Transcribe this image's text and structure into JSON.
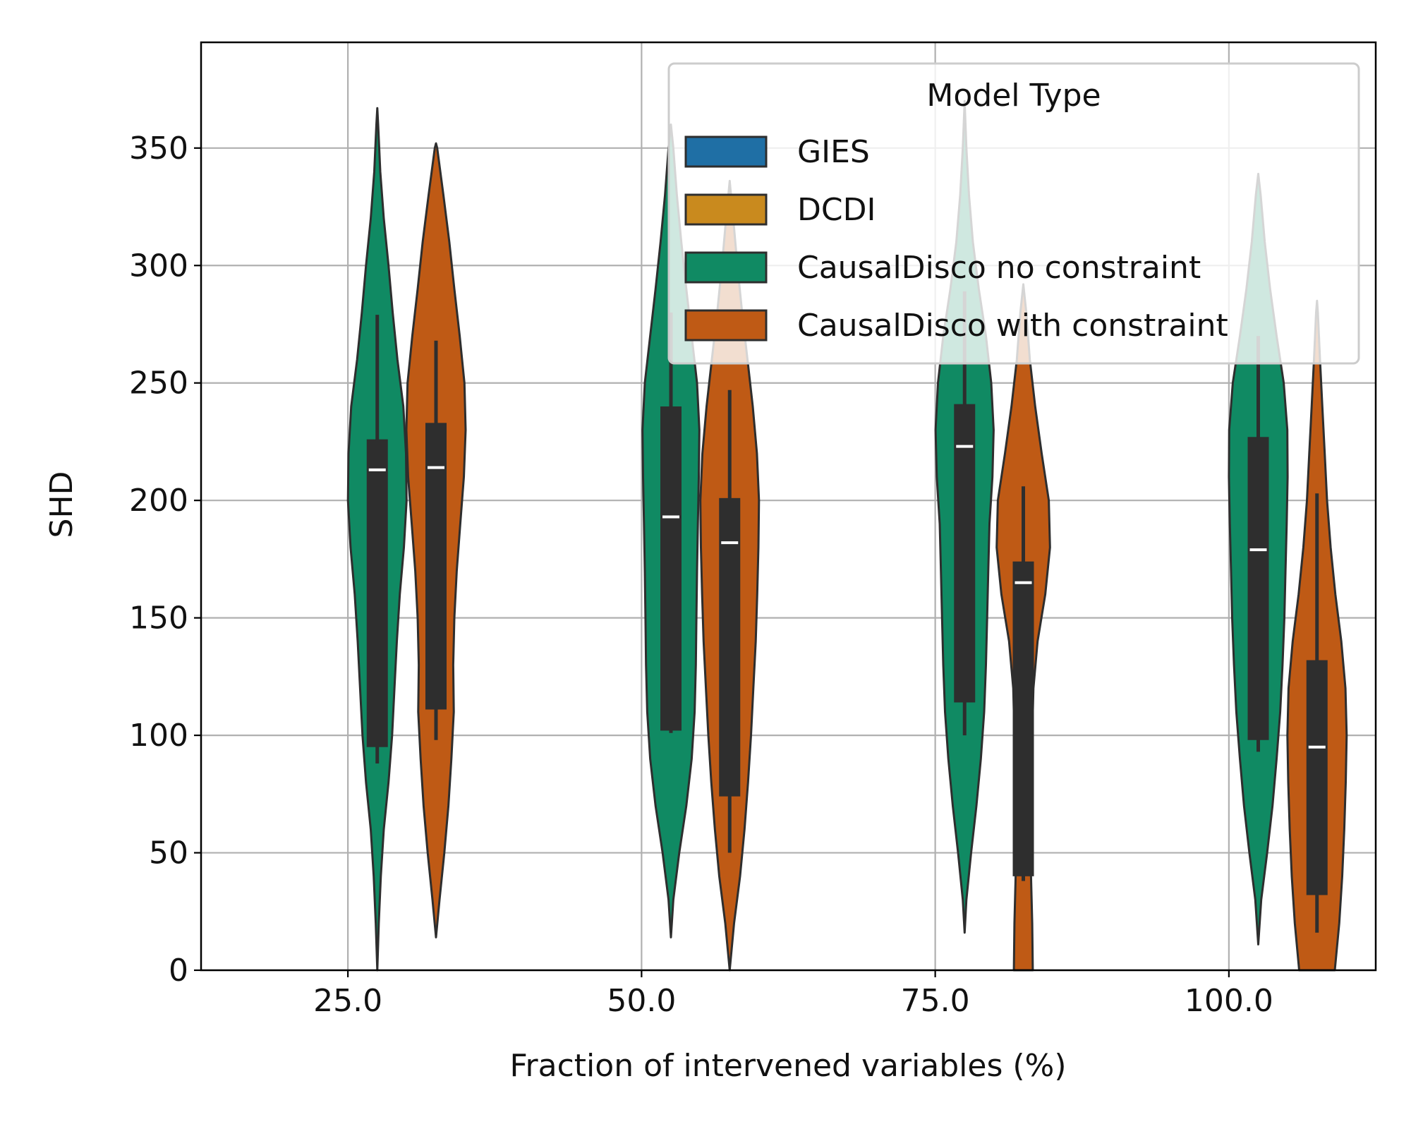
{
  "chart_data": {
    "type": "violin",
    "title": "",
    "xlabel": "Fraction of intervened variables (%)",
    "ylabel": "SHD",
    "ylim": [
      0,
      395
    ],
    "xlim": [
      12.5,
      112.5
    ],
    "categories": [
      25.0,
      50.0,
      75.0,
      100.0
    ],
    "category_labels": [
      "25.0",
      "50.0",
      "75.0",
      "100.0"
    ],
    "yticks": [
      0,
      50,
      100,
      150,
      200,
      250,
      300,
      350
    ],
    "ytick_labels": [
      "0",
      "50",
      "100",
      "150",
      "200",
      "250",
      "300",
      "350"
    ],
    "grid": true,
    "legend": {
      "title": "Model Type",
      "placement": "top-right",
      "entries": [
        {
          "name": "GIES",
          "color": "#1f6fa5"
        },
        {
          "name": "DCDI",
          "color": "#c98a1e"
        },
        {
          "name": "CausalDisco no constraint",
          "color": "#108a63"
        },
        {
          "name": "CausalDisco with constraint",
          "color": "#bf5a15"
        }
      ]
    },
    "series": [
      {
        "name": "CausalDisco no constraint",
        "color": "#108a63",
        "offset": 2.5,
        "violins": [
          {
            "x": 25.0,
            "median": 213,
            "q1": 95,
            "q3": 226,
            "whisker_low": 88,
            "whisker_high": 279,
            "profile": [
              [
                0,
                0.0
              ],
              [
                20,
                0.05
              ],
              [
                40,
                0.12
              ],
              [
                60,
                0.22
              ],
              [
                80,
                0.38
              ],
              [
                100,
                0.5
              ],
              [
                120,
                0.58
              ],
              [
                140,
                0.66
              ],
              [
                160,
                0.76
              ],
              [
                180,
                0.9
              ],
              [
                200,
                0.99
              ],
              [
                220,
                0.97
              ],
              [
                240,
                0.88
              ],
              [
                260,
                0.68
              ],
              [
                280,
                0.52
              ],
              [
                300,
                0.38
              ],
              [
                320,
                0.22
              ],
              [
                340,
                0.1
              ],
              [
                360,
                0.03
              ],
              [
                367,
                0.0
              ]
            ]
          },
          {
            "x": 50.0,
            "median": 193,
            "q1": 102,
            "q3": 240,
            "whisker_low": 101,
            "whisker_high": 280,
            "profile": [
              [
                14,
                0.0
              ],
              [
                30,
                0.08
              ],
              [
                50,
                0.28
              ],
              [
                70,
                0.52
              ],
              [
                90,
                0.7
              ],
              [
                110,
                0.8
              ],
              [
                130,
                0.84
              ],
              [
                150,
                0.86
              ],
              [
                170,
                0.88
              ],
              [
                190,
                0.91
              ],
              [
                210,
                0.94
              ],
              [
                230,
                0.96
              ],
              [
                250,
                0.88
              ],
              [
                270,
                0.7
              ],
              [
                290,
                0.52
              ],
              [
                310,
                0.35
              ],
              [
                330,
                0.2
              ],
              [
                350,
                0.08
              ],
              [
                360,
                0.0
              ]
            ]
          },
          {
            "x": 75.0,
            "median": 223,
            "q1": 114,
            "q3": 241,
            "whisker_low": 100,
            "whisker_high": 289,
            "profile": [
              [
                16,
                0.0
              ],
              [
                30,
                0.06
              ],
              [
                50,
                0.22
              ],
              [
                70,
                0.4
              ],
              [
                90,
                0.55
              ],
              [
                110,
                0.66
              ],
              [
                130,
                0.72
              ],
              [
                150,
                0.76
              ],
              [
                170,
                0.8
              ],
              [
                190,
                0.84
              ],
              [
                210,
                0.94
              ],
              [
                230,
                0.98
              ],
              [
                250,
                0.9
              ],
              [
                270,
                0.72
              ],
              [
                290,
                0.48
              ],
              [
                310,
                0.28
              ],
              [
                330,
                0.15
              ],
              [
                350,
                0.06
              ],
              [
                370,
                0.0
              ]
            ]
          },
          {
            "x": 100.0,
            "median": 179,
            "q1": 98,
            "q3": 227,
            "whisker_low": 93,
            "whisker_high": 270,
            "profile": [
              [
                11,
                0.0
              ],
              [
                30,
                0.1
              ],
              [
                50,
                0.3
              ],
              [
                70,
                0.48
              ],
              [
                90,
                0.62
              ],
              [
                110,
                0.74
              ],
              [
                130,
                0.82
              ],
              [
                150,
                0.88
              ],
              [
                170,
                0.92
              ],
              [
                190,
                0.96
              ],
              [
                210,
                0.99
              ],
              [
                230,
                0.98
              ],
              [
                250,
                0.86
              ],
              [
                270,
                0.62
              ],
              [
                290,
                0.4
              ],
              [
                310,
                0.22
              ],
              [
                330,
                0.08
              ],
              [
                339,
                0.0
              ]
            ]
          }
        ]
      },
      {
        "name": "CausalDisco with constraint",
        "color": "#bf5a15",
        "offset": 7.5,
        "violins": [
          {
            "x": 25.0,
            "median": 214,
            "q1": 111,
            "q3": 233,
            "whisker_low": 98,
            "whisker_high": 268,
            "profile": [
              [
                14,
                0.0
              ],
              [
                30,
                0.12
              ],
              [
                50,
                0.28
              ],
              [
                70,
                0.42
              ],
              [
                90,
                0.52
              ],
              [
                110,
                0.6
              ],
              [
                130,
                0.58
              ],
              [
                150,
                0.62
              ],
              [
                170,
                0.7
              ],
              [
                190,
                0.82
              ],
              [
                210,
                0.94
              ],
              [
                230,
                1.0
              ],
              [
                250,
                0.96
              ],
              [
                270,
                0.8
              ],
              [
                290,
                0.62
              ],
              [
                310,
                0.45
              ],
              [
                330,
                0.25
              ],
              [
                350,
                0.04
              ],
              [
                352,
                0.0
              ]
            ]
          },
          {
            "x": 50.0,
            "median": 182,
            "q1": 74,
            "q3": 201,
            "whisker_low": 50,
            "whisker_high": 247,
            "profile": [
              [
                0,
                0.0
              ],
              [
                20,
                0.15
              ],
              [
                40,
                0.35
              ],
              [
                60,
                0.5
              ],
              [
                80,
                0.62
              ],
              [
                100,
                0.72
              ],
              [
                120,
                0.8
              ],
              [
                140,
                0.88
              ],
              [
                160,
                0.93
              ],
              [
                180,
                0.97
              ],
              [
                200,
                0.99
              ],
              [
                220,
                0.92
              ],
              [
                240,
                0.78
              ],
              [
                260,
                0.6
              ],
              [
                280,
                0.42
              ],
              [
                300,
                0.26
              ],
              [
                320,
                0.12
              ],
              [
                336,
                0.0
              ]
            ]
          },
          {
            "x": 75.0,
            "median": 165,
            "q1": 40,
            "q3": 174,
            "whisker_low": 38,
            "whisker_high": 206,
            "profile": [
              [
                0,
                0.32
              ],
              [
                20,
                0.3
              ],
              [
                40,
                0.26
              ],
              [
                60,
                0.26
              ],
              [
                80,
                0.28
              ],
              [
                100,
                0.3
              ],
              [
                120,
                0.34
              ],
              [
                140,
                0.48
              ],
              [
                160,
                0.74
              ],
              [
                180,
                0.9
              ],
              [
                200,
                0.86
              ],
              [
                220,
                0.62
              ],
              [
                240,
                0.4
              ],
              [
                260,
                0.22
              ],
              [
                280,
                0.1
              ],
              [
                292,
                0.0
              ]
            ]
          },
          {
            "x": 100.0,
            "median": 95,
            "q1": 32,
            "q3": 132,
            "whisker_low": 16,
            "whisker_high": 203,
            "profile": [
              [
                0,
                0.6
              ],
              [
                20,
                0.75
              ],
              [
                40,
                0.85
              ],
              [
                60,
                0.92
              ],
              [
                80,
                0.97
              ],
              [
                100,
                1.0
              ],
              [
                120,
                0.96
              ],
              [
                140,
                0.82
              ],
              [
                160,
                0.62
              ],
              [
                180,
                0.46
              ],
              [
                200,
                0.34
              ],
              [
                220,
                0.26
              ],
              [
                240,
                0.18
              ],
              [
                260,
                0.1
              ],
              [
                280,
                0.03
              ],
              [
                285,
                0.0
              ]
            ]
          }
        ]
      }
    ]
  }
}
